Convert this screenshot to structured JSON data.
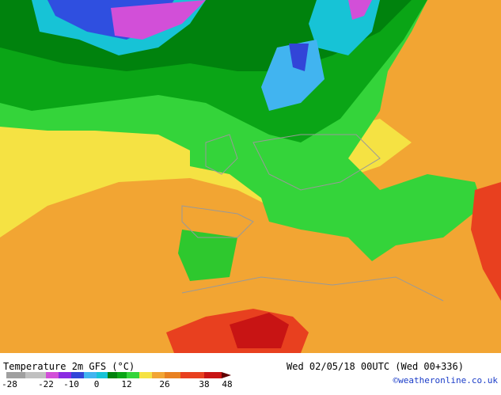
{
  "header": {
    "title": "Temperature 2m GFS (°C)",
    "valid_time": "Wed 02/05/18 00UTC (Wed 00+336)"
  },
  "legend": {
    "ticks": [
      -28,
      -22,
      -10,
      0,
      12,
      26,
      38,
      48
    ]
  },
  "credit": "©weatheronline.co.uk"
}
